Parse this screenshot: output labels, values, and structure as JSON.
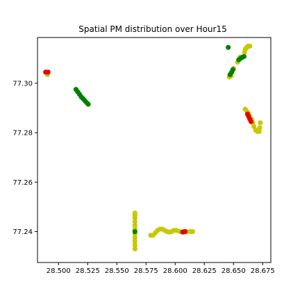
{
  "chart_data": {
    "type": "scatter",
    "title": "Spatial PM distribution over Hour15",
    "xlabel": "",
    "ylabel": "",
    "xlim": [
      28.482,
      28.682
    ],
    "ylim": [
      77.2275,
      77.3185
    ],
    "grid": false,
    "xticks": [
      28.5,
      28.525,
      28.55,
      28.575,
      28.6,
      28.625,
      28.65,
      28.675
    ],
    "xtick_labels": [
      "28.500",
      "28.525",
      "28.550",
      "28.575",
      "28.600",
      "28.625",
      "28.650",
      "28.675"
    ],
    "yticks": [
      77.24,
      77.26,
      77.28,
      77.3
    ],
    "ytick_labels": [
      "77.24",
      "77.26",
      "77.28",
      "77.30"
    ],
    "colors": {
      "red": "#e60000",
      "yellow": "#c8c800",
      "green": "#008000",
      "axis": "#000000"
    },
    "series": [
      {
        "color": "yellow",
        "x": [
          28.4905,
          28.6465,
          28.648,
          28.65,
          28.6535,
          28.6555,
          28.6595,
          28.66,
          28.6605,
          28.6615,
          28.6625,
          28.664,
          28.66,
          28.661,
          28.6625,
          28.6635,
          28.6655,
          28.6665,
          28.6675,
          28.669,
          28.6705,
          28.672,
          28.6725,
          28.673,
          28.5655,
          28.5655,
          28.5655,
          28.5655,
          28.5655,
          28.5655,
          28.5655,
          28.5655,
          28.5655,
          28.5655,
          28.5655,
          28.579,
          28.581,
          28.583,
          28.585,
          28.587,
          28.589,
          28.591,
          28.593,
          28.595,
          28.597,
          28.599,
          28.601,
          28.604,
          28.607,
          28.61,
          28.613,
          28.615
        ],
        "y": [
          77.3035,
          77.3025,
          77.303,
          77.306,
          77.3085,
          77.3105,
          77.3125,
          77.3135,
          77.314,
          77.3145,
          77.315,
          77.315,
          77.2895,
          77.289,
          77.288,
          77.287,
          77.2855,
          77.284,
          77.2825,
          77.281,
          77.2805,
          77.2805,
          77.282,
          77.284,
          77.233,
          77.2345,
          77.236,
          77.2375,
          77.239,
          77.241,
          77.2425,
          77.244,
          77.2455,
          77.2465,
          77.2475,
          77.2385,
          77.2385,
          77.2395,
          77.2405,
          77.241,
          77.241,
          77.2405,
          77.24,
          77.2398,
          77.24,
          77.2405,
          77.2405,
          77.24,
          77.24,
          77.24,
          77.24,
          77.24
        ]
      },
      {
        "color": "green",
        "x": [
          28.515,
          28.5165,
          28.518,
          28.5195,
          28.521,
          28.5225,
          28.524,
          28.5255,
          28.6455,
          28.647,
          28.6485,
          28.6495,
          28.6545,
          28.656,
          28.6575,
          28.659,
          28.5655
        ],
        "y": [
          77.2975,
          77.2965,
          77.2955,
          77.2945,
          77.2938,
          77.293,
          77.2922,
          77.2915,
          77.3145,
          77.3035,
          77.3045,
          77.3055,
          77.3095,
          77.31,
          77.3105,
          77.3108,
          77.24
        ]
      },
      {
        "color": "red",
        "x": [
          28.489,
          28.491,
          28.662,
          28.663,
          28.664,
          28.665,
          28.6065,
          28.6085
        ],
        "y": [
          77.3045,
          77.3045,
          77.2875,
          77.2865,
          77.2855,
          77.2845,
          77.2398,
          77.24
        ]
      }
    ]
  }
}
